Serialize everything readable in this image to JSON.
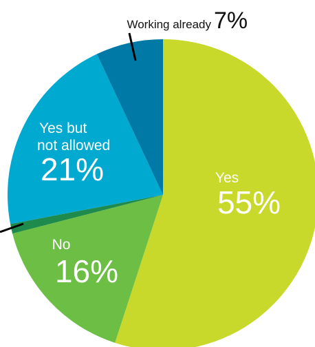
{
  "chart_data": {
    "type": "pie",
    "title": "",
    "slices": [
      {
        "category": "Yes",
        "value": 55,
        "value_label": "55%",
        "color": "#c8d92b"
      },
      {
        "category": "No",
        "value": 16,
        "value_label": "16%",
        "color": "#6cbf44"
      },
      {
        "category": "",
        "value": 1,
        "value_label": "",
        "color": "#1e8a4c"
      },
      {
        "category": "Yes but not allowed",
        "value": 21,
        "value_label": "21%",
        "color": "#00a9cf"
      },
      {
        "category": "Working already",
        "value": 7,
        "value_label": "7%",
        "color": "#0079a6"
      }
    ],
    "labels": {
      "yes_category": "Yes",
      "yes_value": "55%",
      "no_category": "No",
      "no_value": "16%",
      "ybna_line1": "Yes but",
      "ybna_line2": "not allowed",
      "ybna_value": "21%",
      "wa_category": "Working already",
      "wa_value": "7%"
    }
  }
}
